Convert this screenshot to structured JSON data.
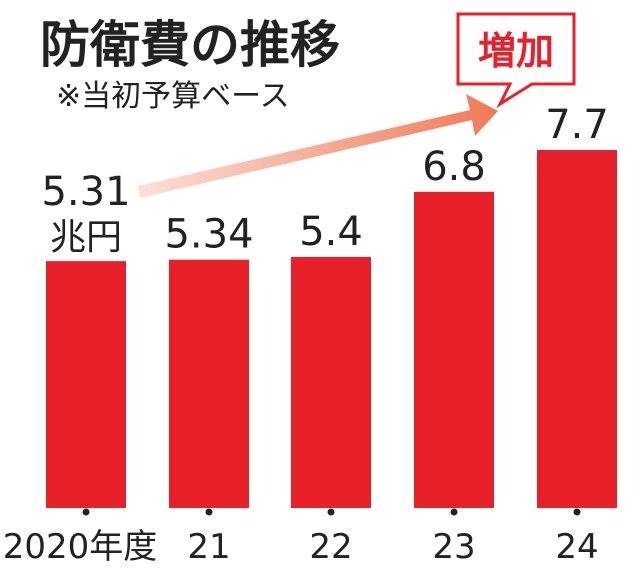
{
  "chart_data": {
    "type": "bar",
    "title": "防衛費の推移",
    "subtitle": "※当初予算ベース",
    "categories": [
      "2020年度",
      "21",
      "22",
      "23",
      "24"
    ],
    "values": [
      5.31,
      5.34,
      5.4,
      6.8,
      7.7
    ],
    "value_labels": [
      "5.31",
      "5.34",
      "5.4",
      "6.8",
      "7.7"
    ],
    "unit_label": "兆円",
    "annotation": "増加",
    "ylim": [
      0,
      7.7
    ],
    "grid": false,
    "legend": "none",
    "colors": {
      "bar": "#e8202a",
      "annotation_border": "#e8202a",
      "annotation_text": "#e8202a",
      "arrow_start": "#fbe0d6",
      "arrow_end": "#f07a55",
      "text": "#222222"
    }
  }
}
